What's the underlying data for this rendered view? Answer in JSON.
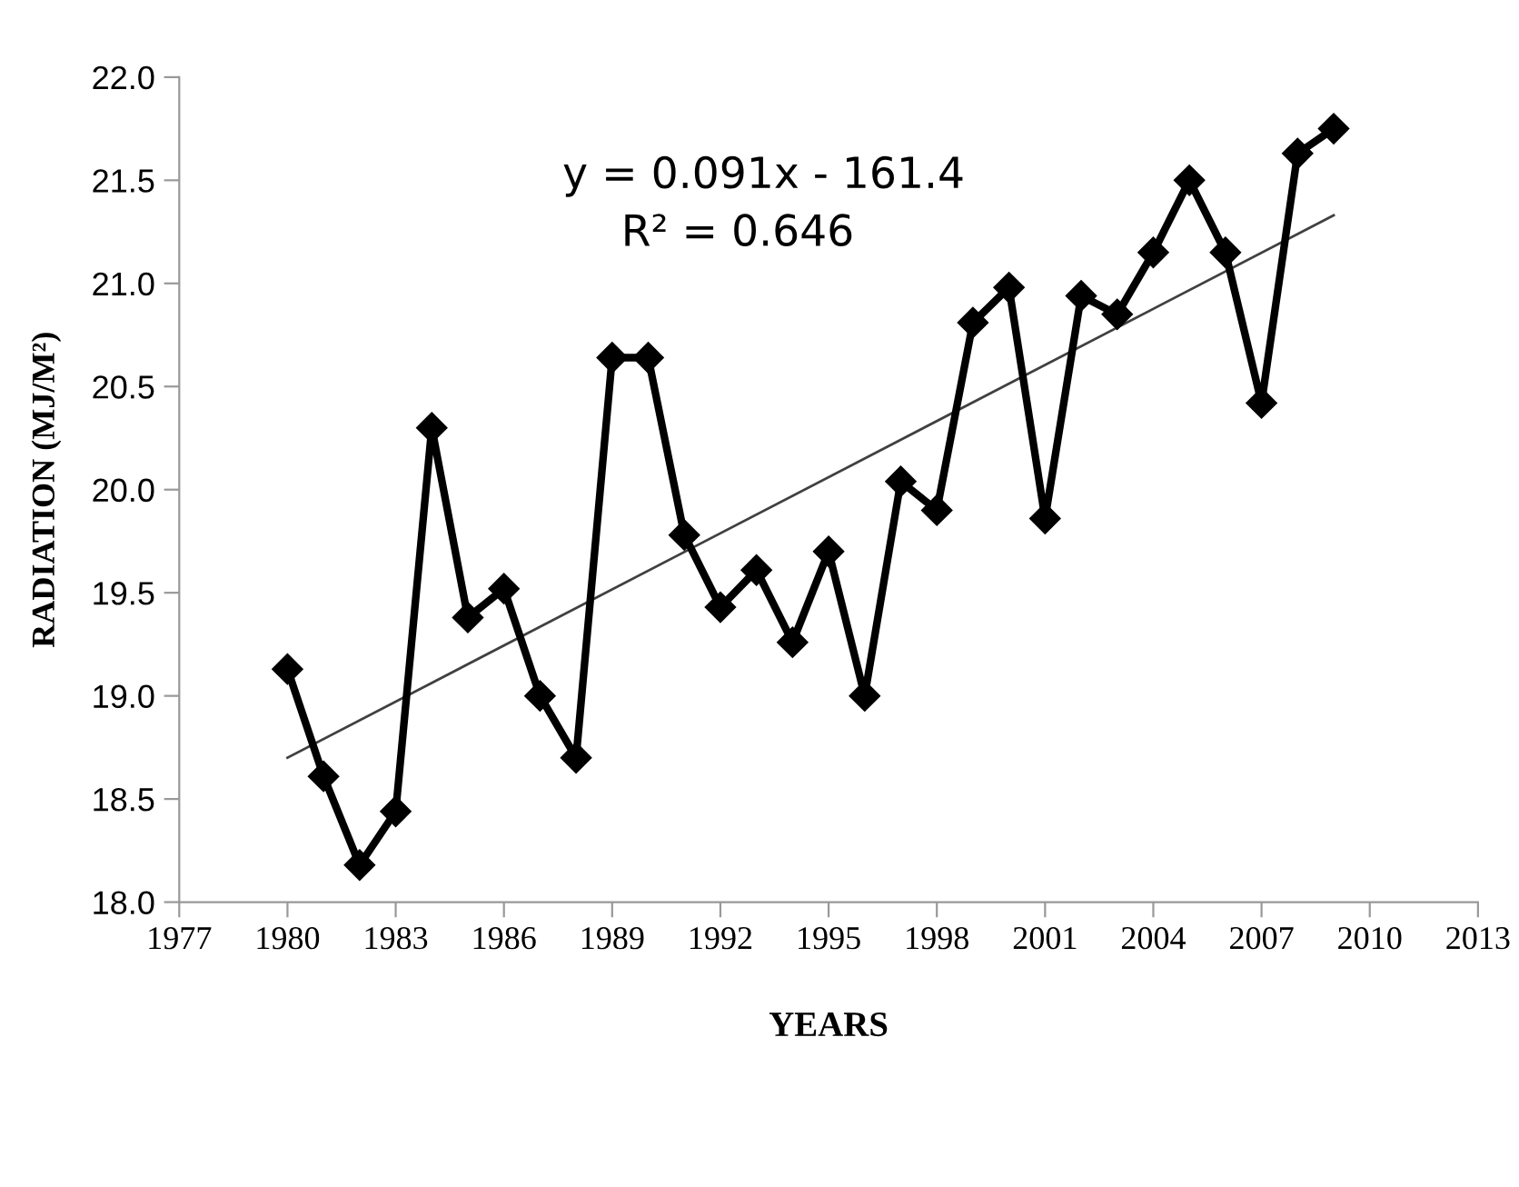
{
  "chart_data": {
    "type": "line",
    "xlabel": "YEARS",
    "ylabel": "RADIATION (MJ/M²)",
    "x": [
      1980,
      1981,
      1982,
      1983,
      1984,
      1985,
      1986,
      1987,
      1988,
      1989,
      1990,
      1991,
      1992,
      1993,
      1994,
      1995,
      1996,
      1997,
      1998,
      1999,
      2000,
      2001,
      2002,
      2003,
      2004,
      2005,
      2006,
      2007,
      2008,
      2009
    ],
    "series": [
      {
        "color": "#000000",
        "marker": "diamond",
        "values": [
          19.13,
          18.61,
          18.18,
          18.44,
          20.3,
          19.38,
          19.52,
          19.0,
          18.7,
          20.64,
          20.64,
          19.78,
          19.43,
          19.61,
          19.26,
          19.7,
          19.0,
          20.04,
          19.9,
          20.81,
          20.98,
          19.86,
          20.94,
          20.85,
          21.15,
          21.5,
          21.15,
          20.42,
          21.63,
          21.75
        ]
      },
      {
        "type": "line",
        "color": "#404040",
        "marker": "none",
        "x": [
          1980,
          2009
        ],
        "values": [
          18.7,
          21.33
        ]
      }
    ],
    "annotations": [
      "y = 0.091x - 161.4",
      "R² = 0.646"
    ],
    "xlim": [
      1977,
      2013
    ],
    "xticks": [
      1977,
      1980,
      1983,
      1986,
      1989,
      1992,
      1995,
      1998,
      2001,
      2004,
      2007,
      2010,
      2013
    ],
    "ylim": [
      18,
      22
    ],
    "yticks": [
      {
        "value": 18,
        "label": "18.0"
      },
      {
        "value": 18.5,
        "label": "18.5"
      },
      {
        "value": 19,
        "label": "19.0"
      },
      {
        "value": 19.5,
        "label": "19.5"
      },
      {
        "value": 20,
        "label": "20.0"
      },
      {
        "value": 20.5,
        "label": "20.5"
      },
      {
        "value": 21,
        "label": "21.0"
      },
      {
        "value": 21.5,
        "label": "21.5"
      },
      {
        "value": 22,
        "label": "22.0"
      }
    ],
    "grid": false,
    "legend": false
  }
}
